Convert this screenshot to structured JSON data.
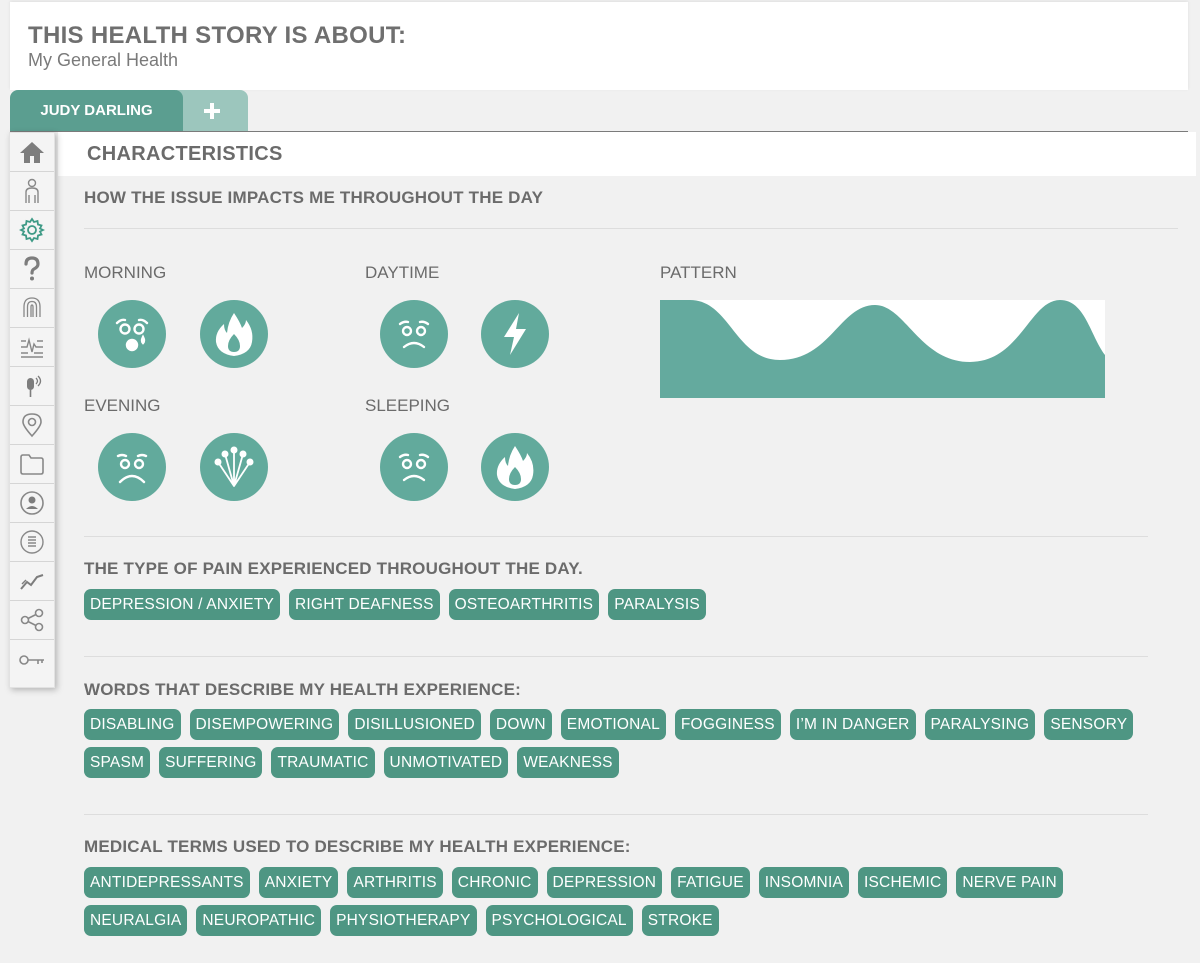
{
  "story": {
    "title": "THIS HEALTH STORY IS ABOUT:",
    "subject": "My General Health"
  },
  "tabs": {
    "active_label": "JUDY DARLING",
    "add_icon": "plus-icon"
  },
  "section": {
    "title": "CHARACTERISTICS"
  },
  "sidebar": {
    "items": [
      {
        "icon": "home-icon"
      },
      {
        "icon": "body-icon"
      },
      {
        "icon": "gear-icon",
        "active": true
      },
      {
        "icon": "question-icon"
      },
      {
        "icon": "fingerprint-icon"
      },
      {
        "icon": "lines-icon"
      },
      {
        "icon": "microphone-icon"
      },
      {
        "icon": "location-pin-icon"
      },
      {
        "icon": "folder-icon"
      },
      {
        "icon": "user-circle-icon"
      },
      {
        "icon": "list-circle-icon"
      },
      {
        "icon": "trend-icon"
      },
      {
        "icon": "share-icon"
      },
      {
        "icon": "key-icon"
      }
    ]
  },
  "impact": {
    "heading": "HOW THE ISSUE IMPACTS ME THROUGHOUT THE DAY",
    "periods": {
      "morning": {
        "label": "MORNING",
        "face": "crying-face-icon",
        "pain": "flame-icon"
      },
      "daytime": {
        "label": "DAYTIME",
        "face": "worried-face-icon",
        "pain": "lightning-icon"
      },
      "evening": {
        "label": "EVENING",
        "face": "sad-face-icon",
        "pain": "pins-icon"
      },
      "sleeping": {
        "label": "SLEEPING",
        "face": "worried-face-icon",
        "pain": "flame-icon"
      }
    },
    "pattern_label": "PATTERN",
    "accent_color": "#62aa9c"
  },
  "pain_types": {
    "heading": "THE TYPE OF PAIN EXPERIENCED THROUGHOUT THE DAY.",
    "tags": [
      "DEPRESSION / ANXIETY",
      "RIGHT DEAFNESS",
      "OSTEOARTHRITIS",
      "PARALYSIS"
    ]
  },
  "words": {
    "heading": "WORDS THAT DESCRIBE MY HEALTH EXPERIENCE:",
    "tags": [
      "DISABLING",
      "DISEMPOWERING",
      "DISILLUSIONED",
      "DOWN",
      "EMOTIONAL",
      "FOGGINESS",
      "I’M IN DANGER",
      "PARALYSING",
      "SENSORY",
      "SPASM",
      "SUFFERING",
      "TRAUMATIC",
      "UNMOTIVATED",
      "WEAKNESS"
    ]
  },
  "medical": {
    "heading": "MEDICAL TERMS USED TO DESCRIBE MY HEALTH EXPERIENCE:",
    "tags": [
      "ANTIDEPRESSANTS",
      "ANXIETY",
      "ARTHRITIS",
      "CHRONIC",
      "DEPRESSION",
      "FATIGUE",
      "INSOMNIA",
      "ISCHEMIC",
      "NERVE PAIN",
      "NEURALGIA",
      "NEUROPATHIC",
      "PHYSIOTHERAPY",
      "PSYCHOLOGICAL",
      "STROKE"
    ]
  },
  "colors": {
    "tag_bg": "#4e9683",
    "tab_active": "#5b9e90",
    "tab_add": "#9cc6bd"
  }
}
